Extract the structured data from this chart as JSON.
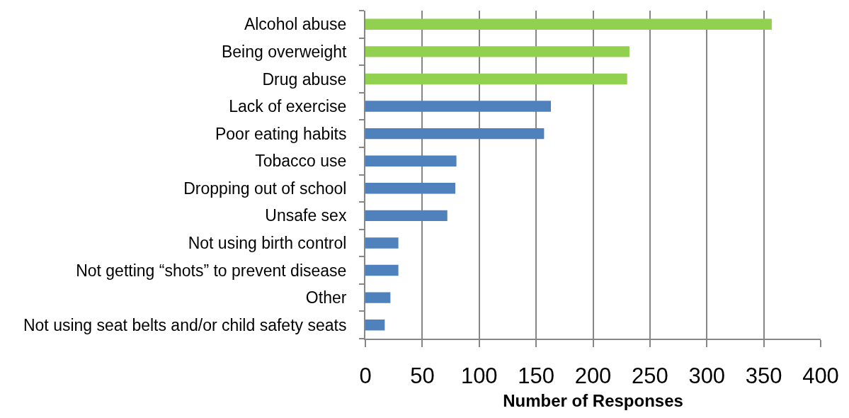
{
  "chart_data": {
    "type": "bar",
    "orientation": "horizontal",
    "xlabel": "Number of Responses",
    "categories": [
      "Alcohol abuse",
      "Being overweight",
      "Drug abuse",
      "Lack of exercise",
      "Poor eating habits",
      "Tobacco use",
      "Dropping out of school",
      "Unsafe sex",
      "Not using birth control",
      "Not getting “shots” to prevent disease",
      "Other",
      "Not using seat belts and/or child safety seats"
    ],
    "values": [
      357,
      232,
      230,
      163,
      157,
      80,
      79,
      72,
      29,
      29,
      22,
      17
    ],
    "colors": [
      "#92d050",
      "#92d050",
      "#92d050",
      "#4f81bd",
      "#4f81bd",
      "#4f81bd",
      "#4f81bd",
      "#4f81bd",
      "#4f81bd",
      "#4f81bd",
      "#4f81bd",
      "#4f81bd"
    ],
    "xlim": [
      0,
      400
    ],
    "xticks": [
      0,
      50,
      100,
      150,
      200,
      250,
      300,
      350,
      400
    ],
    "grid": "x"
  }
}
